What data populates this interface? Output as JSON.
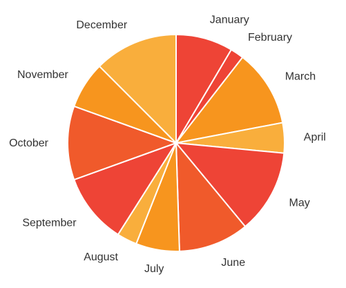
{
  "chart_data": {
    "type": "pie",
    "start_angle_deg": 0,
    "direction": "clockwise",
    "labels_outside": true,
    "slices": [
      {
        "label": "January",
        "value": 8.5,
        "color": "#EE4436"
      },
      {
        "label": "February",
        "value": 2.0,
        "color": "#EE4436"
      },
      {
        "label": "March",
        "value": 11.5,
        "color": "#F7951E"
      },
      {
        "label": "April",
        "value": 4.5,
        "color": "#F9AE3C"
      },
      {
        "label": "May",
        "value": 12.5,
        "color": "#EE4436"
      },
      {
        "label": "June",
        "value": 10.5,
        "color": "#F05A2B"
      },
      {
        "label": "July",
        "value": 6.5,
        "color": "#F7951E"
      },
      {
        "label": "August",
        "value": 3.0,
        "color": "#F9AE3C"
      },
      {
        "label": "September",
        "value": 10.5,
        "color": "#EE4436"
      },
      {
        "label": "October",
        "value": 11.0,
        "color": "#F05A2B"
      },
      {
        "label": "November",
        "value": 7.0,
        "color": "#F7951E"
      },
      {
        "label": "December",
        "value": 12.5,
        "color": "#F9AE3C"
      }
    ]
  }
}
